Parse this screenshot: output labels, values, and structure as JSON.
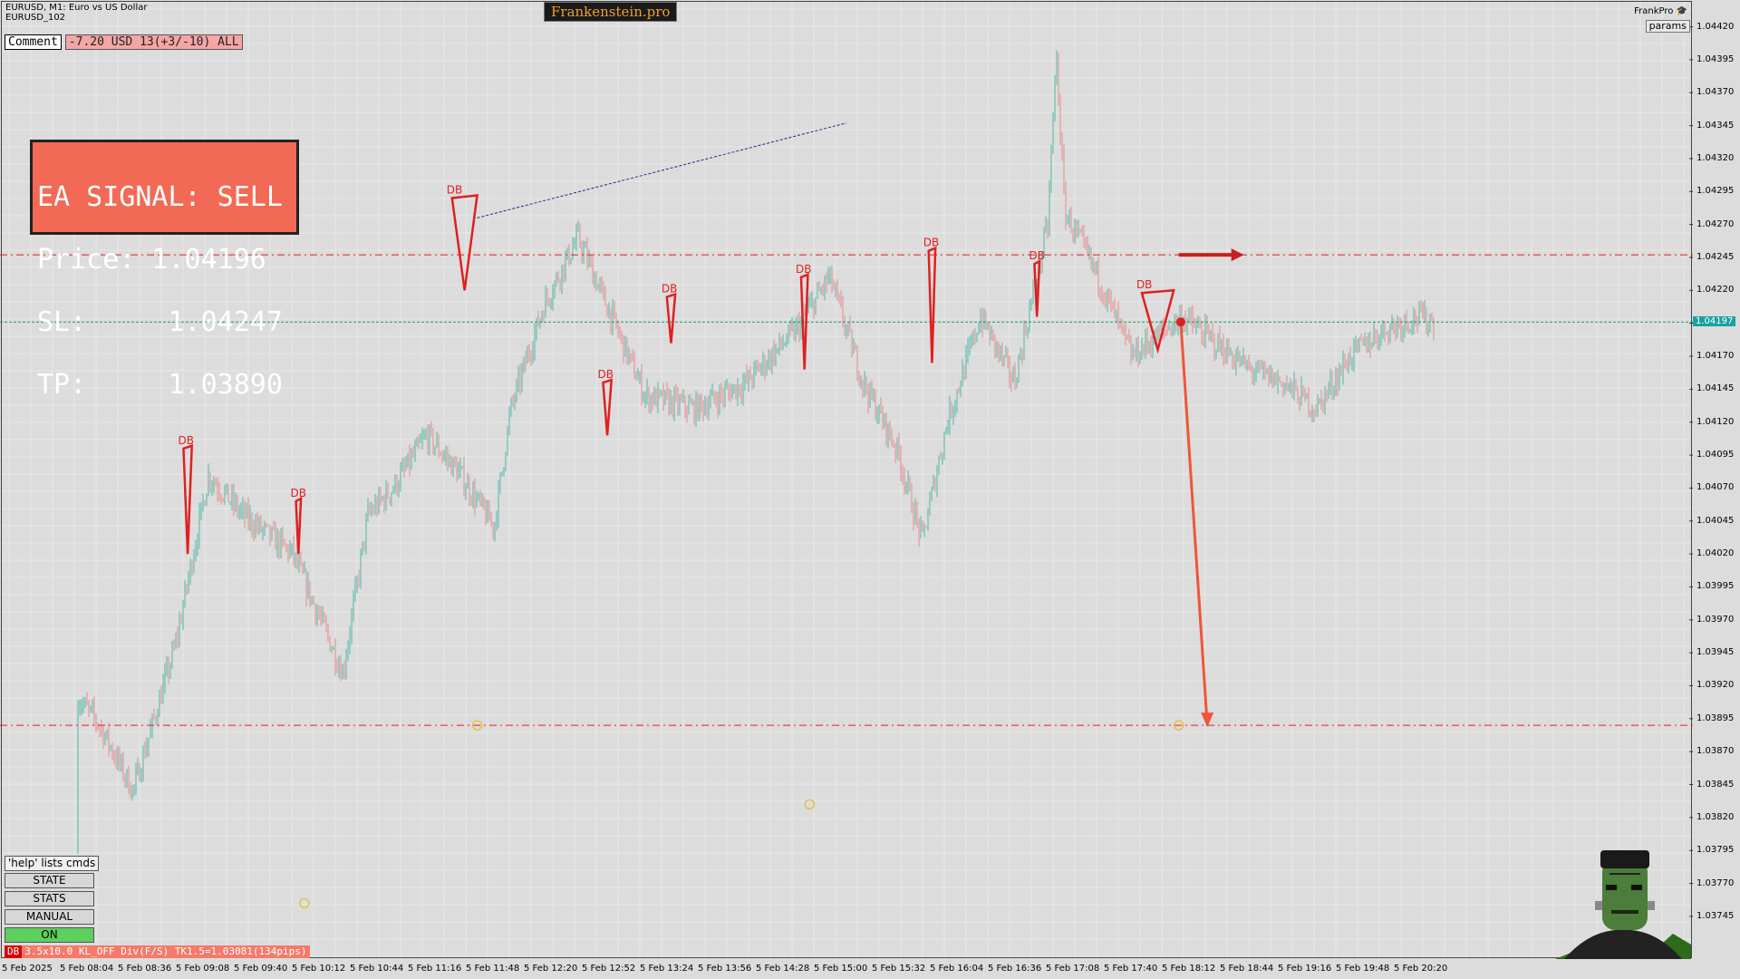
{
  "header": {
    "symbol_line": "EURUSD, M1:  Euro vs US Dollar",
    "account_line": "EURUSD_102",
    "brand": "Frankenstein.pro"
  },
  "comment": {
    "label": "Comment",
    "value": "-7.20 USD 13(+3/-10) ALL"
  },
  "signal": {
    "line1": "EA SIGNAL: SELL",
    "line2": "Price: 1.04196",
    "line3": "SL:     1.04247",
    "line4": "TP:     1.03890"
  },
  "top_right": {
    "user": "FrankPro",
    "params_label": "params"
  },
  "side_panel": {
    "help": "'help' lists cmds",
    "state": "STATE",
    "stats": "STATS",
    "manual": "MANUAL",
    "on": "ON"
  },
  "status_bar": {
    "tag": "DB",
    "text": "3.5x10.0 KL_OFF Div(F/S) TK1.5=1.03081(134pips)"
  },
  "price_axis": {
    "labels": [
      "1.04420",
      "1.04395",
      "1.04370",
      "1.04345",
      "1.04320",
      "1.04295",
      "1.04270",
      "1.04245",
      "1.04220",
      "1.04195",
      "1.04170",
      "1.04145",
      "1.04120",
      "1.04095",
      "1.04070",
      "1.04045",
      "1.04020",
      "1.03995",
      "1.03970",
      "1.03945",
      "1.03920",
      "1.03895",
      "1.03870",
      "1.03845",
      "1.03820",
      "1.03795",
      "1.03770",
      "1.03745"
    ],
    "current_price": "1.04197"
  },
  "time_axis": {
    "labels": [
      "5 Feb 2025",
      "5 Feb 08:04",
      "5 Feb 08:36",
      "5 Feb 09:08",
      "5 Feb 09:40",
      "5 Feb 10:12",
      "5 Feb 10:44",
      "5 Feb 11:16",
      "5 Feb 11:48",
      "5 Feb 12:20",
      "5 Feb 12:52",
      "5 Feb 13:24",
      "5 Feb 13:56",
      "5 Feb 14:28",
      "5 Feb 15:00",
      "5 Feb 15:32",
      "5 Feb 16:04",
      "5 Feb 16:36",
      "5 Feb 17:08",
      "5 Feb 17:40",
      "5 Feb 18:12",
      "5 Feb 18:44",
      "5 Feb 19:16",
      "5 Feb 19:48",
      "5 Feb 20:20"
    ]
  },
  "chart_markers": {
    "db_label": "DB"
  },
  "colors": {
    "background": "#dcdcdc",
    "bull": "#4fb8a8",
    "bear": "#e88a8a",
    "signal_box": "#f26a55",
    "level_line": "#e02020",
    "current_line": "#1a9a6a"
  },
  "chart_data": {
    "type": "candlestick",
    "symbol": "EURUSD",
    "timeframe": "M1",
    "ylim": [
      1.03725,
      1.0443
    ],
    "price_path": [
      [
        0.0,
        1.03795
      ],
      [
        0.03,
        1.0393
      ],
      [
        0.055,
        1.0389
      ],
      [
        0.075,
        1.0384
      ],
      [
        0.1,
        1.0395
      ],
      [
        0.12,
        1.0408
      ],
      [
        0.14,
        1.0405
      ],
      [
        0.17,
        1.0402
      ],
      [
        0.19,
        1.0396
      ],
      [
        0.2,
        1.0393
      ],
      [
        0.215,
        1.0405
      ],
      [
        0.23,
        1.0407
      ],
      [
        0.25,
        1.0411
      ],
      [
        0.27,
        1.0408
      ],
      [
        0.29,
        1.0404
      ],
      [
        0.3,
        1.0413
      ],
      [
        0.32,
        1.0421
      ],
      [
        0.34,
        1.0426
      ],
      [
        0.36,
        1.042
      ],
      [
        0.38,
        1.0414
      ],
      [
        0.41,
        1.0413
      ],
      [
        0.44,
        1.0415
      ],
      [
        0.47,
        1.0419
      ],
      [
        0.49,
        1.0423
      ],
      [
        0.51,
        1.0415
      ],
      [
        0.53,
        1.041
      ],
      [
        0.545,
        1.0403
      ],
      [
        0.56,
        1.0412
      ],
      [
        0.58,
        1.042
      ],
      [
        0.6,
        1.0415
      ],
      [
        0.62,
        1.0427
      ],
      [
        0.625,
        1.044
      ],
      [
        0.63,
        1.0428
      ],
      [
        0.65,
        1.0423
      ],
      [
        0.67,
        1.0417
      ],
      [
        0.7,
        1.042
      ],
      [
        0.72,
        1.0418
      ],
      [
        0.74,
        1.0416
      ],
      [
        0.76,
        1.0415
      ],
      [
        0.78,
        1.0413
      ],
      [
        0.8,
        1.0417
      ],
      [
        0.82,
        1.0419
      ],
      [
        0.84,
        1.042
      ],
      [
        0.85,
        1.04196
      ]
    ],
    "levels": {
      "sell_price": 1.04196,
      "sl": 1.04247,
      "tp": 1.0389
    }
  }
}
